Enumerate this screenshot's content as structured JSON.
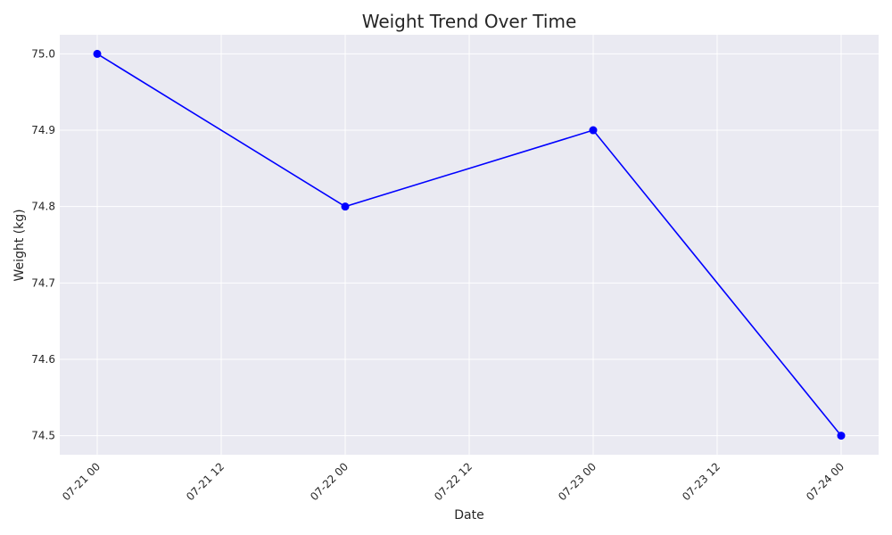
{
  "chart_data": {
    "type": "line",
    "title": "Weight Trend Over Time",
    "xlabel": "Date",
    "ylabel": "Weight (kg)",
    "x": [
      "07-21",
      "07-22",
      "07-23",
      "07-24"
    ],
    "series": [
      {
        "values": [
          75.0,
          74.8,
          74.9,
          74.5
        ]
      }
    ],
    "x_ticks": [
      "07-21 00",
      "07-21 12",
      "07-22 00",
      "07-22 12",
      "07-23 00",
      "07-23 12",
      "07-24 00"
    ],
    "y_ticks": [
      "74.5",
      "74.6",
      "74.7",
      "74.8",
      "74.9",
      "75.0"
    ],
    "ylim": [
      74.475,
      75.025
    ],
    "grid": true,
    "colors": {
      "line": "#0000ff",
      "background": "#eaeaf2",
      "grid": "#ffffff"
    }
  }
}
